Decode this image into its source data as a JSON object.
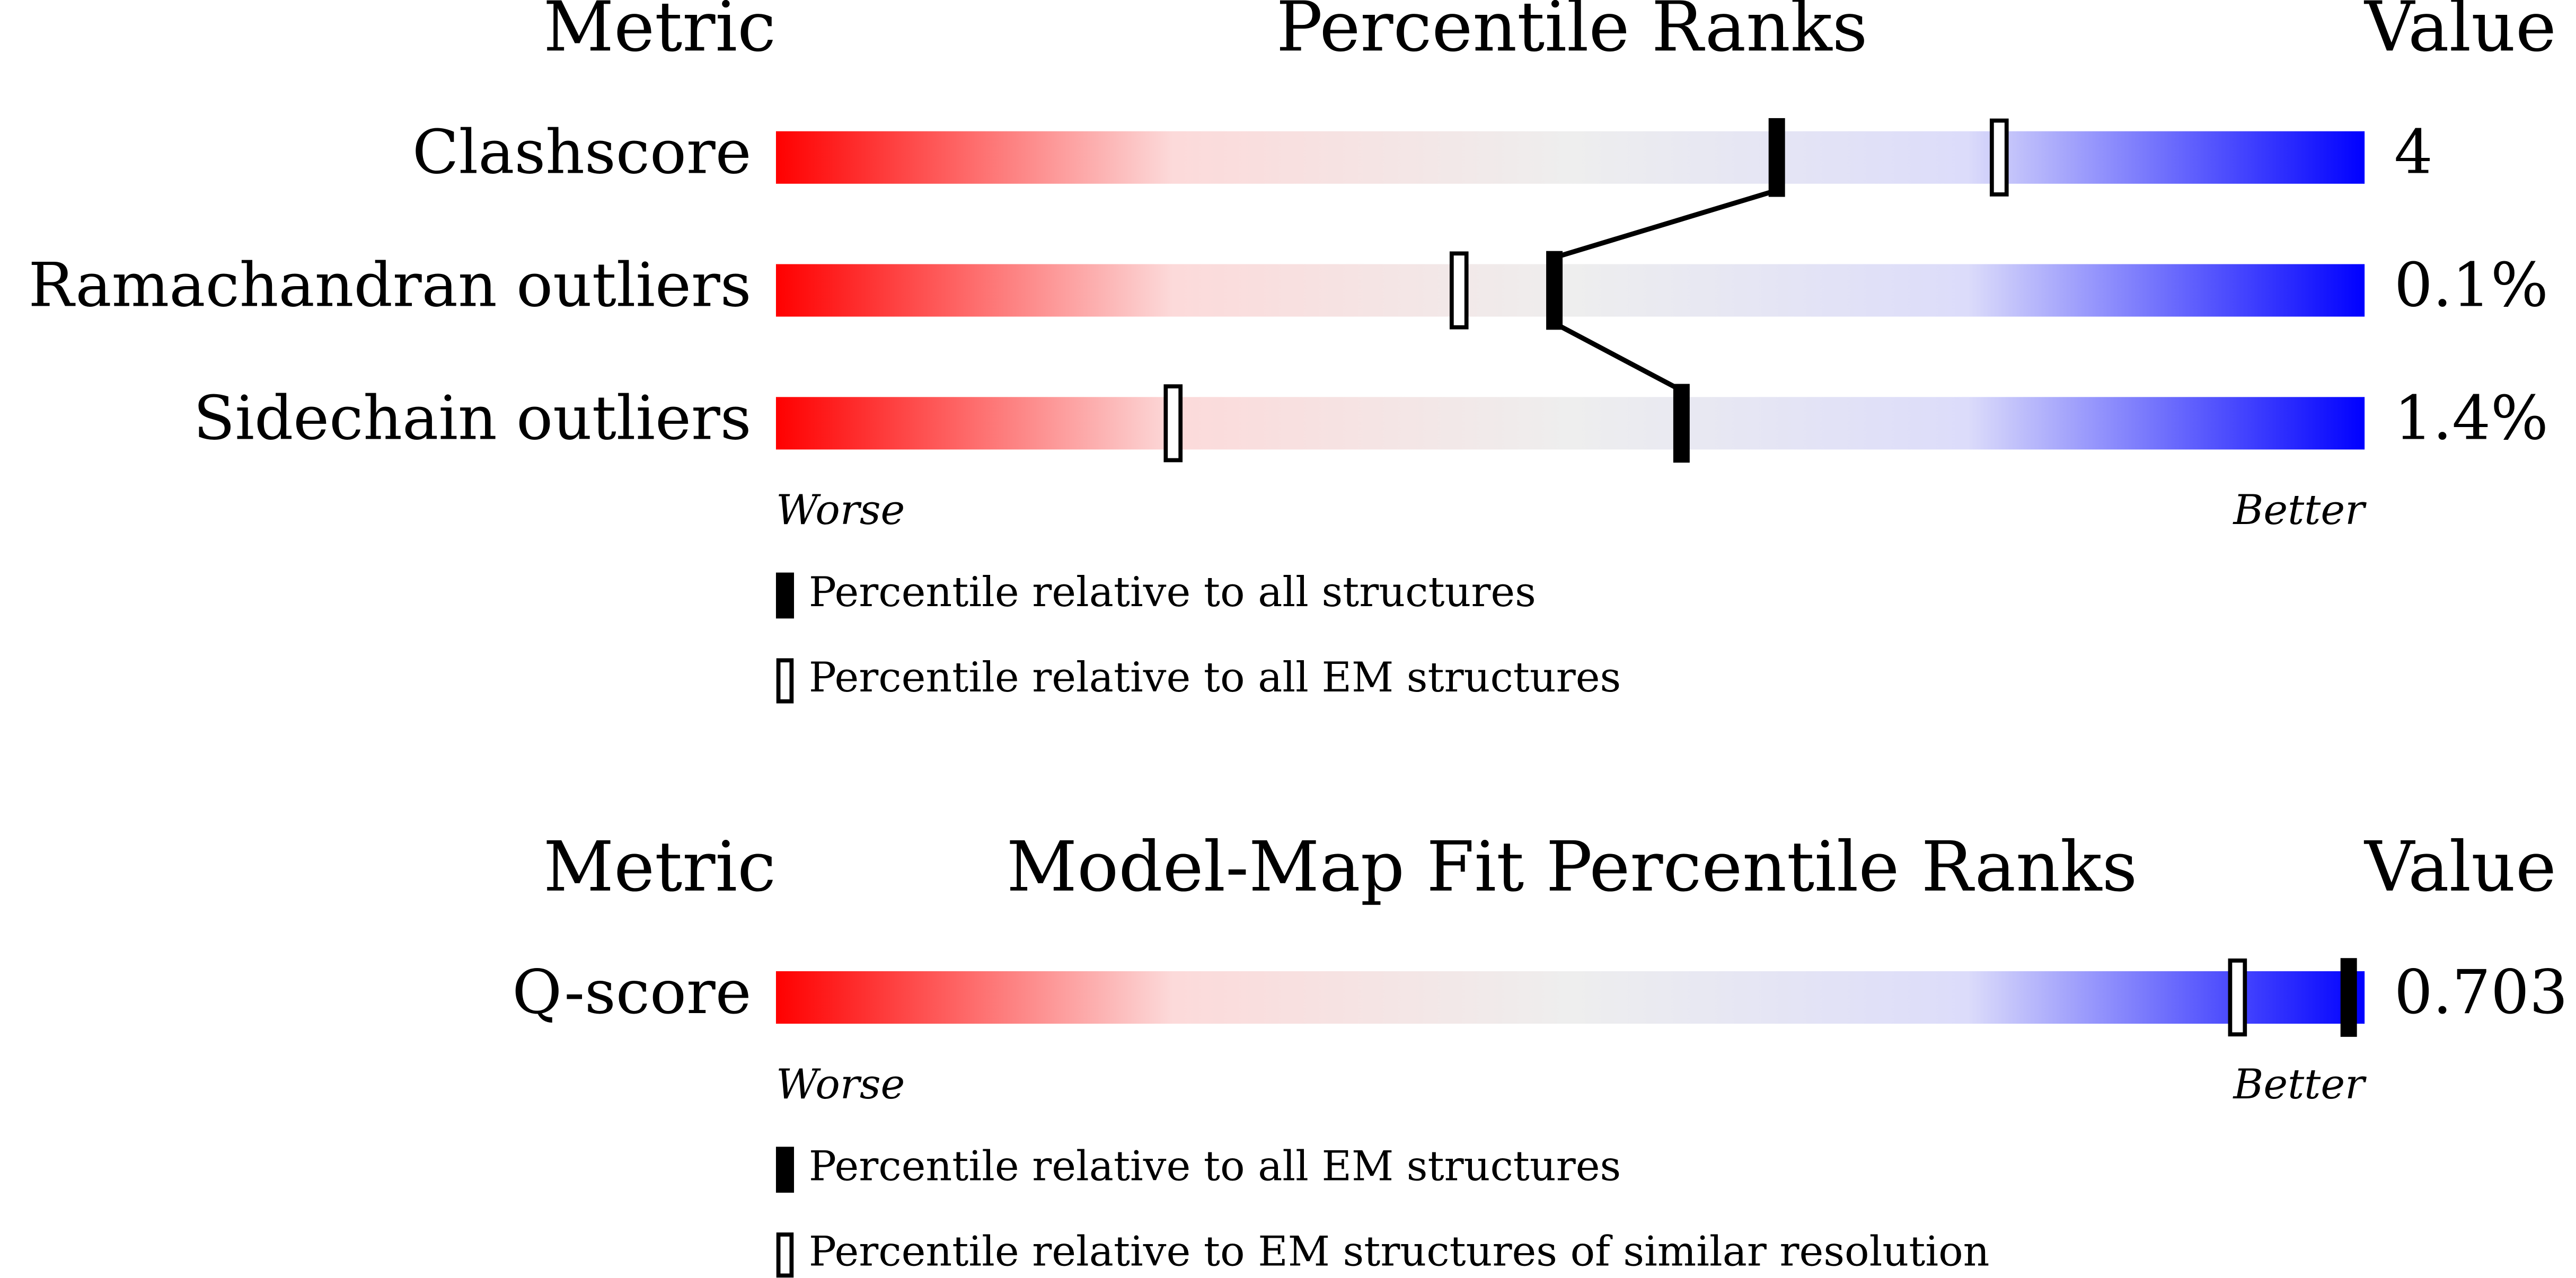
{
  "chart_data": [
    {
      "type": "slider",
      "metric_header": "Metric",
      "title": "Percentile Ranks",
      "value_header": "Value",
      "categories": [
        "Clashscore",
        "Ramachandran outliers",
        "Sidechain outliers"
      ],
      "value_labels": [
        "4",
        "0.1%",
        "1.4%"
      ],
      "xlim": [
        0,
        100
      ],
      "colors": [
        "#ff0000",
        "#fcdada",
        "#eeeeee",
        "#dcdcfa",
        "#0000ff"
      ],
      "series": [
        {
          "name": "Percentile relative to all structures",
          "style": "filled",
          "color": "#000000",
          "values": [
            63,
            49,
            57
          ]
        },
        {
          "name": "Percentile relative to all EM structures",
          "style": "hollow",
          "color": "#000000",
          "values": [
            77,
            43,
            25
          ]
        }
      ],
      "worse": "Worse",
      "better": "Better"
    },
    {
      "type": "slider",
      "metric_header": "Metric",
      "title": "Model-Map Fit Percentile Ranks",
      "value_header": "Value",
      "categories": [
        "Q-score"
      ],
      "value_labels": [
        "0.703"
      ],
      "xlim": [
        0,
        100
      ],
      "colors": [
        "#ff0000",
        "#fcdada",
        "#eeeeee",
        "#dcdcfa",
        "#0000ff"
      ],
      "series": [
        {
          "name": "Percentile relative to all EM structures",
          "style": "filled",
          "color": "#000000",
          "values": [
            99
          ]
        },
        {
          "name": "Percentile relative to EM structures of similar resolution",
          "style": "hollow",
          "color": "#000000",
          "values": [
            92
          ]
        }
      ],
      "worse": "Worse",
      "better": "Better"
    }
  ]
}
